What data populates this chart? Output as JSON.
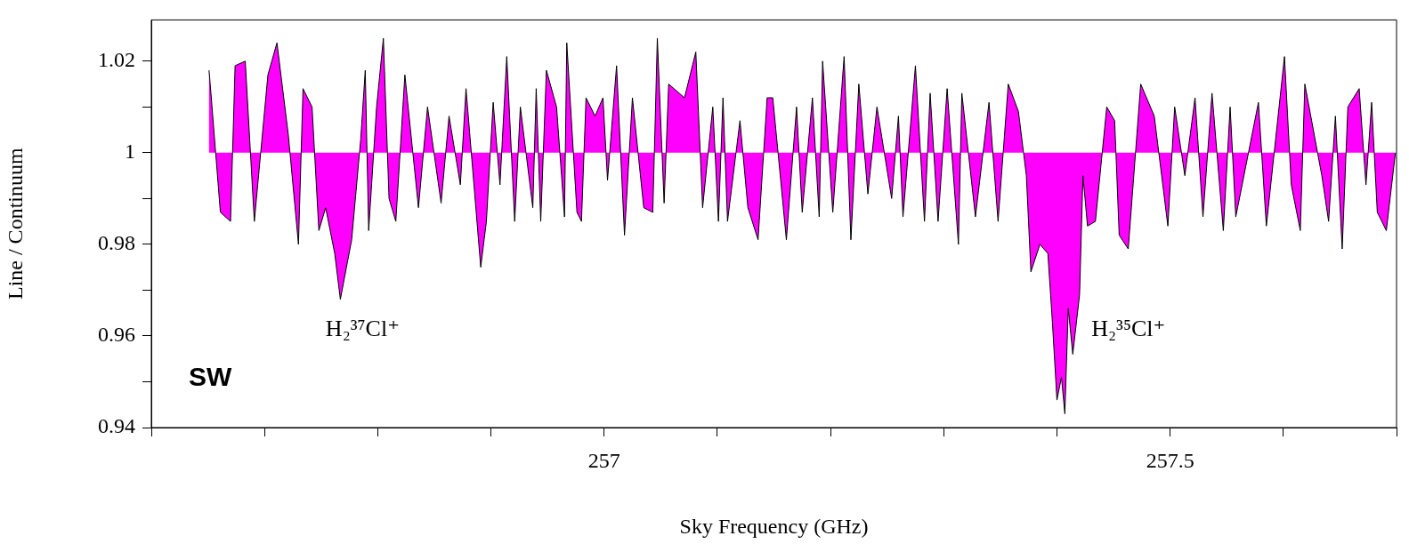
{
  "chart_data": {
    "type": "area",
    "xlabel": "Sky Frequency (GHz)",
    "ylabel": "Line / Continuum",
    "xlim": [
      256.6,
      257.7
    ],
    "xticks": [
      {
        "value": 256.6,
        "label": null
      },
      {
        "value": 256.7,
        "label": null
      },
      {
        "value": 256.8,
        "label": null
      },
      {
        "value": 256.9,
        "label": null
      },
      257,
      {
        "value": 257.1,
        "label": null
      },
      {
        "value": 257.2,
        "label": null
      },
      {
        "value": 257.3,
        "label": null
      },
      {
        "value": 257.4,
        "label": null
      },
      257.5,
      {
        "value": 257.6,
        "label": null
      },
      {
        "value": 257.7,
        "label": null
      }
    ],
    "ylim": [
      0.94,
      1.029
    ],
    "yticks": [
      0.94,
      {
        "value": 0.95,
        "label": null
      },
      0.96,
      {
        "value": 0.97,
        "label": null
      },
      0.98,
      {
        "value": 0.99,
        "label": null
      },
      1,
      {
        "value": 1.01,
        "label": null
      },
      1.02
    ],
    "grid": false,
    "legend": false,
    "marker": "none",
    "line_style": "solid",
    "series": [
      {
        "color": "#ff00ff",
        "x": [
          256.651,
          256.653,
          256.661,
          256.67,
          256.674,
          256.683,
          256.691,
          256.703,
          256.711,
          256.721,
          256.73,
          256.734,
          256.742,
          256.748,
          256.754,
          256.762,
          256.767,
          256.777,
          256.785,
          256.789,
          256.792,
          256.799,
          256.805,
          256.81,
          256.816,
          256.824,
          256.836,
          256.844,
          256.856,
          256.863,
          256.873,
          256.878,
          256.891,
          256.896,
          256.902,
          256.908,
          256.914,
          256.921,
          256.926,
          256.937,
          256.94,
          256.944,
          256.949,
          256.958,
          256.965,
          256.967,
          256.976,
          256.98,
          256.984,
          256.992,
          256.999,
          257.003,
          257.011,
          257.018,
          257.025,
          257.035,
          257.043,
          257.047,
          257.053,
          257.057,
          257.071,
          257.081,
          257.087,
          257.096,
          257.101,
          257.105,
          257.109,
          257.12,
          257.127,
          257.136,
          257.144,
          257.149,
          257.161,
          257.17,
          257.175,
          257.184,
          257.19,
          257.193,
          257.202,
          257.212,
          257.218,
          257.225,
          257.233,
          257.241,
          257.254,
          257.26,
          257.264,
          257.275,
          257.283,
          257.288,
          257.295,
          257.303,
          257.313,
          257.316,
          257.328,
          257.34,
          257.348,
          257.357,
          257.366,
          257.373,
          257.377,
          257.385,
          257.392,
          257.396,
          257.4,
          257.404,
          257.407,
          257.41,
          257.414,
          257.42,
          257.423,
          257.427,
          257.434,
          257.444,
          257.451,
          257.455,
          257.463,
          257.474,
          257.486,
          257.498,
          257.504,
          257.513,
          257.522,
          257.529,
          257.537,
          257.547,
          257.553,
          257.558,
          257.578,
          257.585,
          257.601,
          257.607,
          257.615,
          257.619,
          257.634,
          257.64,
          257.646,
          257.652,
          257.657,
          257.667,
          257.673,
          257.678,
          257.683,
          257.691,
          257.699
        ],
        "values": [
          1.018,
          1.012,
          0.987,
          0.985,
          1.019,
          1.02,
          0.985,
          1.017,
          1.024,
          1.004,
          0.98,
          1.014,
          1.01,
          0.983,
          0.988,
          0.978,
          0.968,
          0.981,
          1.003,
          1.018,
          0.983,
          1.01,
          1.025,
          0.99,
          0.985,
          1.017,
          0.988,
          1.01,
          0.989,
          1.008,
          0.993,
          1.014,
          0.975,
          0.985,
          1.011,
          0.993,
          1.021,
          0.985,
          1.01,
          0.988,
          1.014,
          0.985,
          1.018,
          1.01,
          0.986,
          1.024,
          0.987,
          0.985,
          1.012,
          1.008,
          1.012,
          0.994,
          1.019,
          0.982,
          1.012,
          0.988,
          0.987,
          1.025,
          0.989,
          1.015,
          1.012,
          1.022,
          0.988,
          1.01,
          0.985,
          1.012,
          0.985,
          1.007,
          0.988,
          0.981,
          1.012,
          1.012,
          0.981,
          1.01,
          0.987,
          1.012,
          0.986,
          1.02,
          0.987,
          1.021,
          0.981,
          1.015,
          0.991,
          1.01,
          0.99,
          1.008,
          0.986,
          1.019,
          0.985,
          1.013,
          0.985,
          1.014,
          0.98,
          1.013,
          0.986,
          1.011,
          0.985,
          1.015,
          1.009,
          0.995,
          0.974,
          0.98,
          0.978,
          0.963,
          0.946,
          0.951,
          0.943,
          0.966,
          0.956,
          0.969,
          0.995,
          0.984,
          0.985,
          1.01,
          1.007,
          0.982,
          0.979,
          1.015,
          1.008,
          0.984,
          1.01,
          0.995,
          1.012,
          0.986,
          1.013,
          0.983,
          1.01,
          0.986,
          1.011,
          0.984,
          1.021,
          0.993,
          0.983,
          1.015,
          0.995,
          0.985,
          1.008,
          0.979,
          1.01,
          1.014,
          0.993,
          1.011,
          0.987,
          0.983,
          1.0
        ]
      }
    ],
    "annotations": [
      "H₂³⁷Cl⁺",
      "H₂³⁵Cl⁺",
      "SW"
    ]
  }
}
